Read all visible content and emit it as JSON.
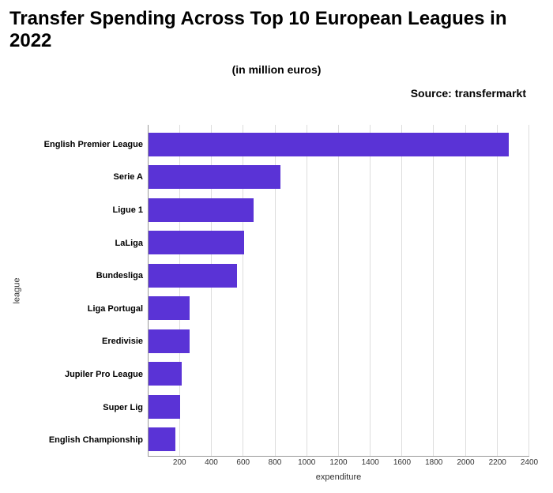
{
  "chart": {
    "type": "bar-horizontal",
    "title": "Transfer Spending Across Top 10 European Leagues in 2022",
    "subtitle": "(in million euros)",
    "source": "Source: transfermarkt",
    "y_axis_label": "league",
    "x_axis_label": "expenditure",
    "bar_color": "#5a33d6",
    "background_color": "#ffffff",
    "grid_color": "#dddddd",
    "axis_color": "#999999",
    "title_fontsize": 24,
    "subtitle_fontsize": 14,
    "source_fontsize": 14,
    "category_label_fontsize": 11,
    "tick_fontsize": 10,
    "axis_label_fontsize": 11,
    "x_min": 0,
    "x_max": 2400,
    "x_tick_step": 200,
    "x_ticks": [
      200,
      400,
      600,
      800,
      1000,
      1200,
      1400,
      1600,
      1800,
      2000,
      2200,
      2400
    ],
    "categories": [
      "English Premier League",
      "Serie A",
      "Ligue 1",
      "LaLiga",
      "Bundesliga",
      "Liga Portugal",
      "Eredivisie",
      "Jupiler Pro League",
      "Super Lig",
      "English Championship"
    ],
    "values": [
      2270,
      830,
      660,
      600,
      560,
      260,
      260,
      210,
      200,
      170
    ]
  }
}
